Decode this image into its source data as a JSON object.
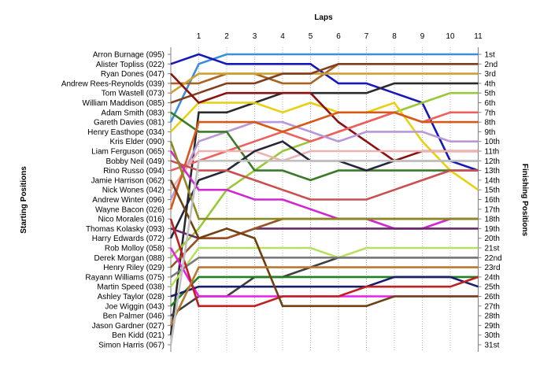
{
  "chart_data": {
    "type": "line",
    "title": "",
    "xlabel": "Laps",
    "ylabel_left": "Starting Positions",
    "ylabel_right": "Finishing Positions",
    "x": [
      0,
      1,
      2,
      3,
      4,
      5,
      6,
      7,
      8,
      9,
      10,
      11
    ],
    "x_tick_labels": [
      "1",
      "2",
      "3",
      "4",
      "5",
      "6",
      "7",
      "8",
      "9",
      "10",
      "11"
    ],
    "ylim": [
      1,
      31
    ],
    "y_inverted": true,
    "grid": "vertical dotted lines at each lap",
    "legend": "none",
    "starting_positions": [
      "Arron Burnage (095)",
      "Alister Topliss (022)",
      "Ryan Dones (047)",
      "Andrew Rees-Reynolds (039)",
      "Tom Wastell (073)",
      "William Maddison (085)",
      "Adam Smith (083)",
      "Gareth Davies (081)",
      "Henry Easthope (034)",
      "Kris Elder (090)",
      "Liam Ferguson (065)",
      "Bobby Neil (049)",
      "Rino Russo (094)",
      "Jamie Harrison (062)",
      "Nick Wones (042)",
      "Andrew Winter (096)",
      "Wayne Bacon (026)",
      "Nico Morales (016)",
      "Thomas Kolasky (093)",
      "Harry Edwards (072)",
      "Rob Molloy (058)",
      "Derek Morgan (088)",
      "Henry Riley (029)",
      "Rayann Williams (075)",
      "Martin Speed (038)",
      "Ashley Taylor (028)",
      "Joe Wiggin (043)",
      "Ben Palmer (046)",
      "Jason Gardner (027)",
      "Ben Kidd (021)",
      "Simon Harris (067)"
    ],
    "finishing_positions": [
      "1st",
      "2nd",
      "3rd",
      "4th",
      "5th",
      "6th",
      "7th",
      "8th",
      "9th",
      "10th",
      "11th",
      "12th",
      "13th",
      "14th",
      "15th",
      "16th",
      "17th",
      "18th",
      "19th",
      "20th",
      "21st",
      "22nd",
      "23rd",
      "24th",
      "25th",
      "26th",
      "27th",
      "28th",
      "29th",
      "30th",
      "31st"
    ],
    "series": [
      {
        "color": "#3a8fd8",
        "values": [
          8,
          2,
          1,
          1,
          1,
          1,
          1,
          1,
          1,
          1,
          1,
          1
        ]
      },
      {
        "color": "#1818b8",
        "values": [
          2,
          1,
          2,
          2,
          2,
          2,
          4,
          4,
          5,
          6,
          12,
          13
        ]
      },
      {
        "color": "#a86420",
        "values": [
          4,
          4,
          3,
          3,
          4,
          4,
          2,
          2,
          2,
          2,
          2,
          2
        ]
      },
      {
        "color": "#2a2a2a",
        "values": [
          30,
          7,
          7,
          6,
          5,
          5,
          5,
          5,
          4,
          4,
          4,
          4
        ]
      },
      {
        "color": "#d0a030",
        "values": [
          5,
          3,
          3,
          3,
          3,
          3,
          3,
          3,
          3,
          3,
          3,
          3
        ]
      },
      {
        "color": "#804020",
        "values": [
          6,
          5,
          4,
          4,
          3,
          3,
          2,
          2,
          2,
          2,
          2,
          2
        ]
      },
      {
        "color": "#98c838",
        "values": [
          22,
          19,
          15,
          13,
          11,
          10,
          9,
          8,
          7,
          6,
          5,
          5
        ]
      },
      {
        "color": "#e8d010",
        "values": [
          9,
          6,
          6,
          6,
          7,
          6,
          7,
          7,
          6,
          10,
          13,
          15
        ]
      },
      {
        "color": "#8b1010",
        "values": [
          3,
          6,
          5,
          5,
          5,
          5,
          8,
          10,
          12,
          11,
          11,
          11
        ]
      },
      {
        "color": "#ee6060",
        "values": [
          13,
          12,
          11,
          10,
          9,
          10,
          9,
          8,
          7,
          8,
          7,
          7
        ]
      },
      {
        "color": "#b898d8",
        "values": [
          16,
          10,
          9,
          8,
          8,
          9,
          10,
          9,
          9,
          9,
          10,
          10
        ]
      },
      {
        "color": "#3a7a28",
        "values": [
          7,
          9,
          9,
          13,
          13,
          14,
          13,
          13,
          13,
          13,
          13,
          13
        ]
      },
      {
        "color": "#f0b0b0",
        "values": [
          15,
          11,
          11,
          11,
          12,
          11,
          11,
          11,
          11,
          11,
          11,
          11
        ]
      },
      {
        "color": "#d85818",
        "values": [
          17,
          8,
          8,
          8,
          9,
          8,
          7,
          7,
          7,
          8,
          8,
          8
        ]
      },
      {
        "color": "#26263a",
        "values": [
          20,
          14,
          13,
          11,
          10,
          12,
          12,
          13,
          12,
          12,
          12,
          12
        ]
      },
      {
        "color": "#d028d0",
        "values": [
          11,
          15,
          15,
          16,
          16,
          17,
          18,
          18,
          19,
          19,
          18,
          18
        ]
      },
      {
        "color": "#404040",
        "values": [
          28,
          26,
          26,
          24,
          24,
          23,
          22,
          22,
          22,
          22,
          22,
          22
        ]
      },
      {
        "color": "#c85050",
        "values": [
          12,
          13,
          13,
          14,
          15,
          16,
          16,
          16,
          15,
          14,
          13,
          13
        ]
      },
      {
        "color": "#6a2a6a",
        "values": [
          19,
          20,
          20,
          19,
          19,
          19,
          19,
          19,
          19,
          19,
          19,
          19
        ]
      },
      {
        "color": "#9a5020",
        "values": [
          23,
          20,
          20,
          19,
          18,
          18,
          18,
          18,
          18,
          18,
          18,
          18
        ]
      },
      {
        "color": "#b8e060",
        "values": [
          25,
          21,
          21,
          21,
          21,
          21,
          22,
          21,
          21,
          21,
          21,
          21
        ]
      },
      {
        "color": "#7a7a7a",
        "values": [
          24,
          22,
          22,
          22,
          22,
          22,
          22,
          22,
          22,
          22,
          22,
          22
        ]
      },
      {
        "color": "#208020",
        "values": [
          27,
          24,
          24,
          24,
          24,
          24,
          24,
          24,
          24,
          24,
          24,
          24
        ]
      },
      {
        "color": "#e820e8",
        "values": [
          21,
          26,
          26,
          26,
          26,
          26,
          26,
          26,
          26,
          26,
          26,
          26
        ]
      },
      {
        "color": "#1c1c6c",
        "values": [
          26,
          25,
          25,
          25,
          25,
          25,
          25,
          25,
          24,
          24,
          24,
          25
        ]
      },
      {
        "color": "#c02020",
        "values": [
          18,
          27,
          27,
          27,
          26,
          26,
          26,
          25,
          25,
          25,
          25,
          24
        ]
      },
      {
        "color": "#8a8a20",
        "values": [
          10,
          18,
          18,
          18,
          18,
          18,
          18,
          18,
          18,
          18,
          18,
          18
        ]
      },
      {
        "color": "#704010",
        "values": [
          14,
          20,
          19,
          20,
          27,
          27,
          27,
          27,
          26,
          26,
          26,
          26
        ]
      },
      {
        "color": "#b87830",
        "values": [
          29,
          23,
          23,
          23,
          23,
          23,
          23,
          23,
          23,
          23,
          23,
          23
        ]
      },
      {
        "color": "#c0c0c0",
        "values": [
          31,
          12,
          12,
          12,
          12,
          12,
          12,
          12,
          12,
          12,
          12,
          12
        ]
      }
    ]
  }
}
